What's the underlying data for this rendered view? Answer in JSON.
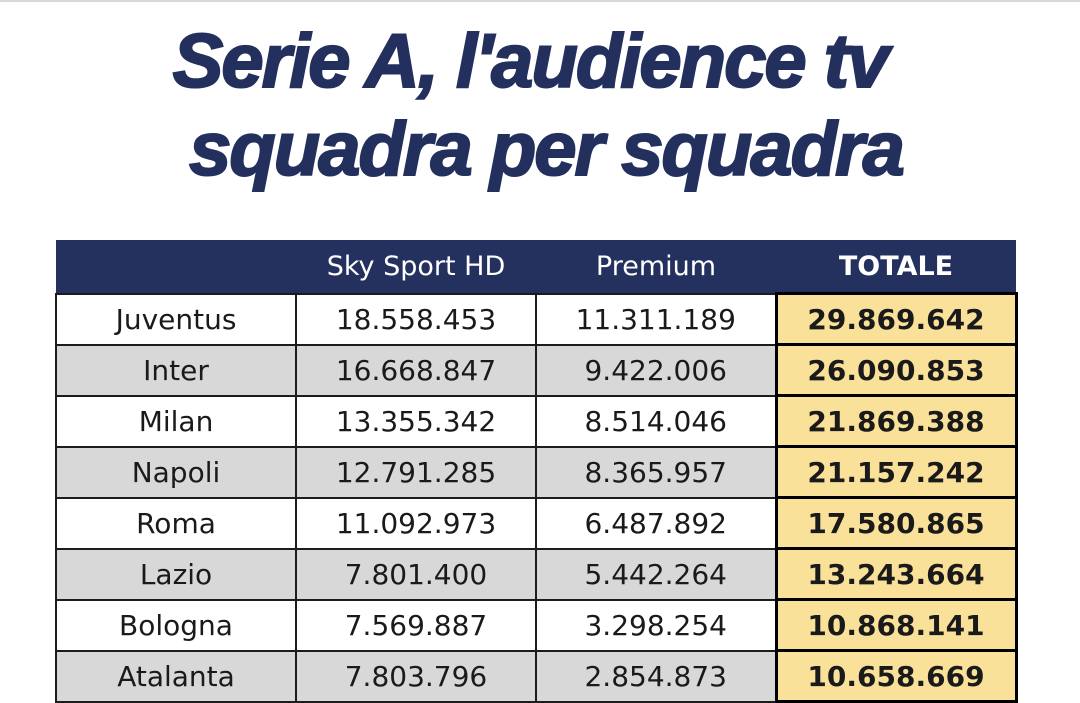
{
  "title": {
    "line1": "Serie A, l'audience tv",
    "line2": "squadra per squadra"
  },
  "table": {
    "headers": [
      "",
      "Sky Sport HD",
      "Premium",
      "TOTALE"
    ],
    "rows": [
      {
        "team": "Juventus",
        "sky": "18.558.453",
        "premium": "11.311.189",
        "total": "29.869.642"
      },
      {
        "team": "Inter",
        "sky": "16.668.847",
        "premium": "9.422.006",
        "total": "26.090.853"
      },
      {
        "team": "Milan",
        "sky": "13.355.342",
        "premium": "8.514.046",
        "total": "21.869.388"
      },
      {
        "team": "Napoli",
        "sky": "12.791.285",
        "premium": "8.365.957",
        "total": "21.157.242"
      },
      {
        "team": "Roma",
        "sky": "11.092.973",
        "premium": "6.487.892",
        "total": "17.580.865"
      },
      {
        "team": "Lazio",
        "sky": "7.801.400",
        "premium": "5.442.264",
        "total": "13.243.664"
      },
      {
        "team": "Bologna",
        "sky": "7.569.887",
        "premium": "3.298.254",
        "total": "10.868.141"
      },
      {
        "team": "Atalanta",
        "sky": "7.803.796",
        "premium": "2.854.873",
        "total": "10.658.669"
      }
    ]
  },
  "colors": {
    "header_bg": "#24305d",
    "title": "#23305e",
    "total_highlight": "#fae19a",
    "alt_row": "#d8d8d8"
  }
}
